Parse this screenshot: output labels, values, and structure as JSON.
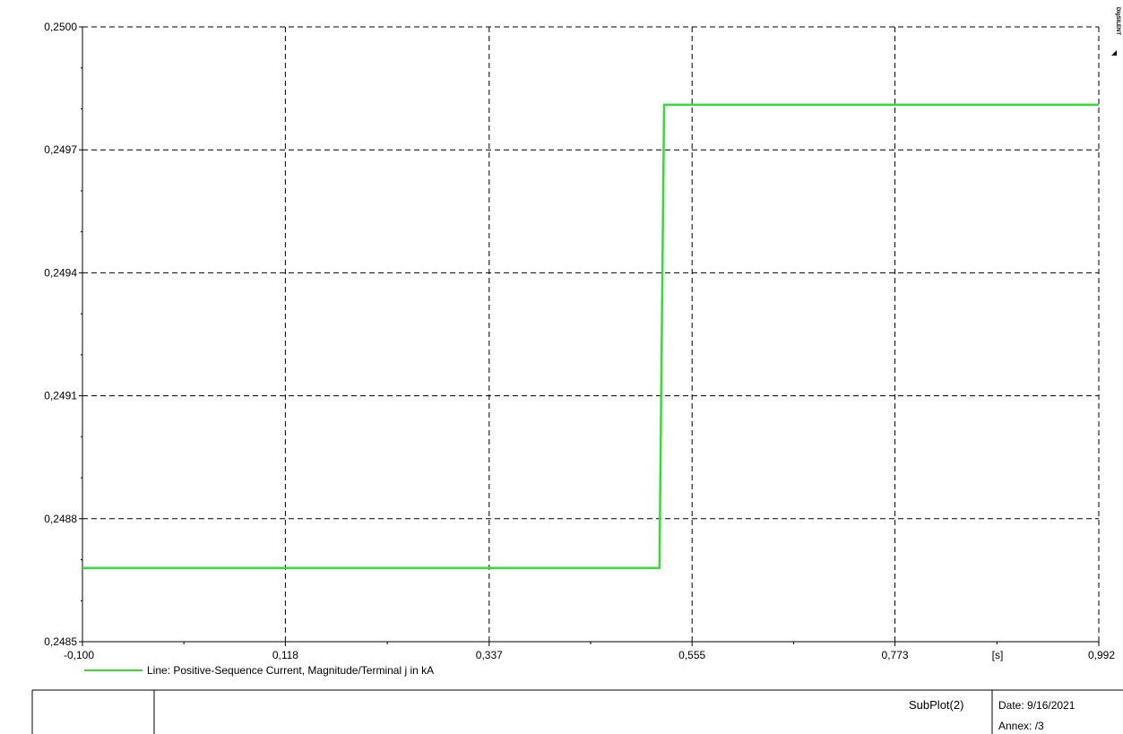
{
  "chart_data": {
    "type": "line",
    "x_ticks": [
      "-0,100",
      "0,118",
      "0,337",
      "0,555",
      "0,773",
      "0,992"
    ],
    "x_tick_values": [
      -0.1,
      0.118,
      0.337,
      0.555,
      0.773,
      0.992
    ],
    "y_ticks": [
      "0,2485",
      "0,2488",
      "0,2491",
      "0,2494",
      "0,2497",
      "0,2500"
    ],
    "y_tick_values": [
      0.2485,
      0.2488,
      0.2491,
      0.2494,
      0.2497,
      0.25
    ],
    "xlim": [
      -0.1,
      0.992
    ],
    "ylim": [
      0.2485,
      0.25
    ],
    "x_unit": "[s]",
    "grid": true,
    "legend_position": "bottom-left",
    "series": [
      {
        "name": "Line: Positive-Sequence Current, Magnitude/Terminal j in kA",
        "color": "#33dd33",
        "x": [
          -0.1,
          0.52,
          0.525,
          0.992
        ],
        "y": [
          0.24868,
          0.24868,
          0.24981,
          0.24981
        ]
      }
    ]
  },
  "footer": {
    "subplot": "SubPlot(2)",
    "date": "Date: 9/16/2021",
    "annex": "Annex:   /3"
  },
  "logo": {
    "text": "DIgSILENT"
  }
}
